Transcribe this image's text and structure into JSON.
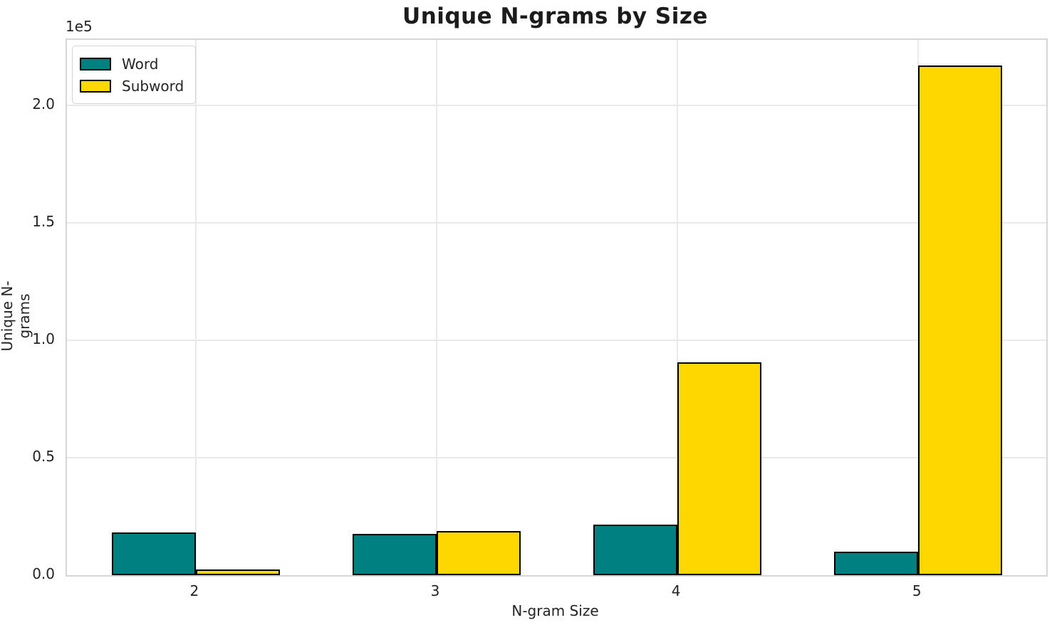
{
  "chart_data": {
    "type": "bar",
    "title": "Unique N-grams by Size",
    "xlabel": "N-gram Size",
    "ylabel": "Unique N-grams",
    "categories": [
      "2",
      "3",
      "4",
      "5"
    ],
    "series": [
      {
        "name": "Word",
        "color": "#008080",
        "values": [
          18200,
          17600,
          21500,
          10000
        ]
      },
      {
        "name": "Subword",
        "color": "#FFD700",
        "values": [
          2300,
          18800,
          90500,
          217000
        ]
      }
    ],
    "bar_edge_color": "#000000",
    "ylim": [
      0,
      227900
    ],
    "yticks": {
      "offset_label": "1e5",
      "values": [
        0,
        50000,
        100000,
        150000,
        200000
      ],
      "labels": [
        "0.0",
        "0.5",
        "1.0",
        "1.5",
        "2.0"
      ]
    },
    "grid": true,
    "legend_position": "upper-left",
    "colors": {
      "word": "#008080",
      "subword": "#FFD700",
      "grid": "#e9e9e9",
      "spine": "#d6d6d6",
      "text": "#242424"
    }
  }
}
